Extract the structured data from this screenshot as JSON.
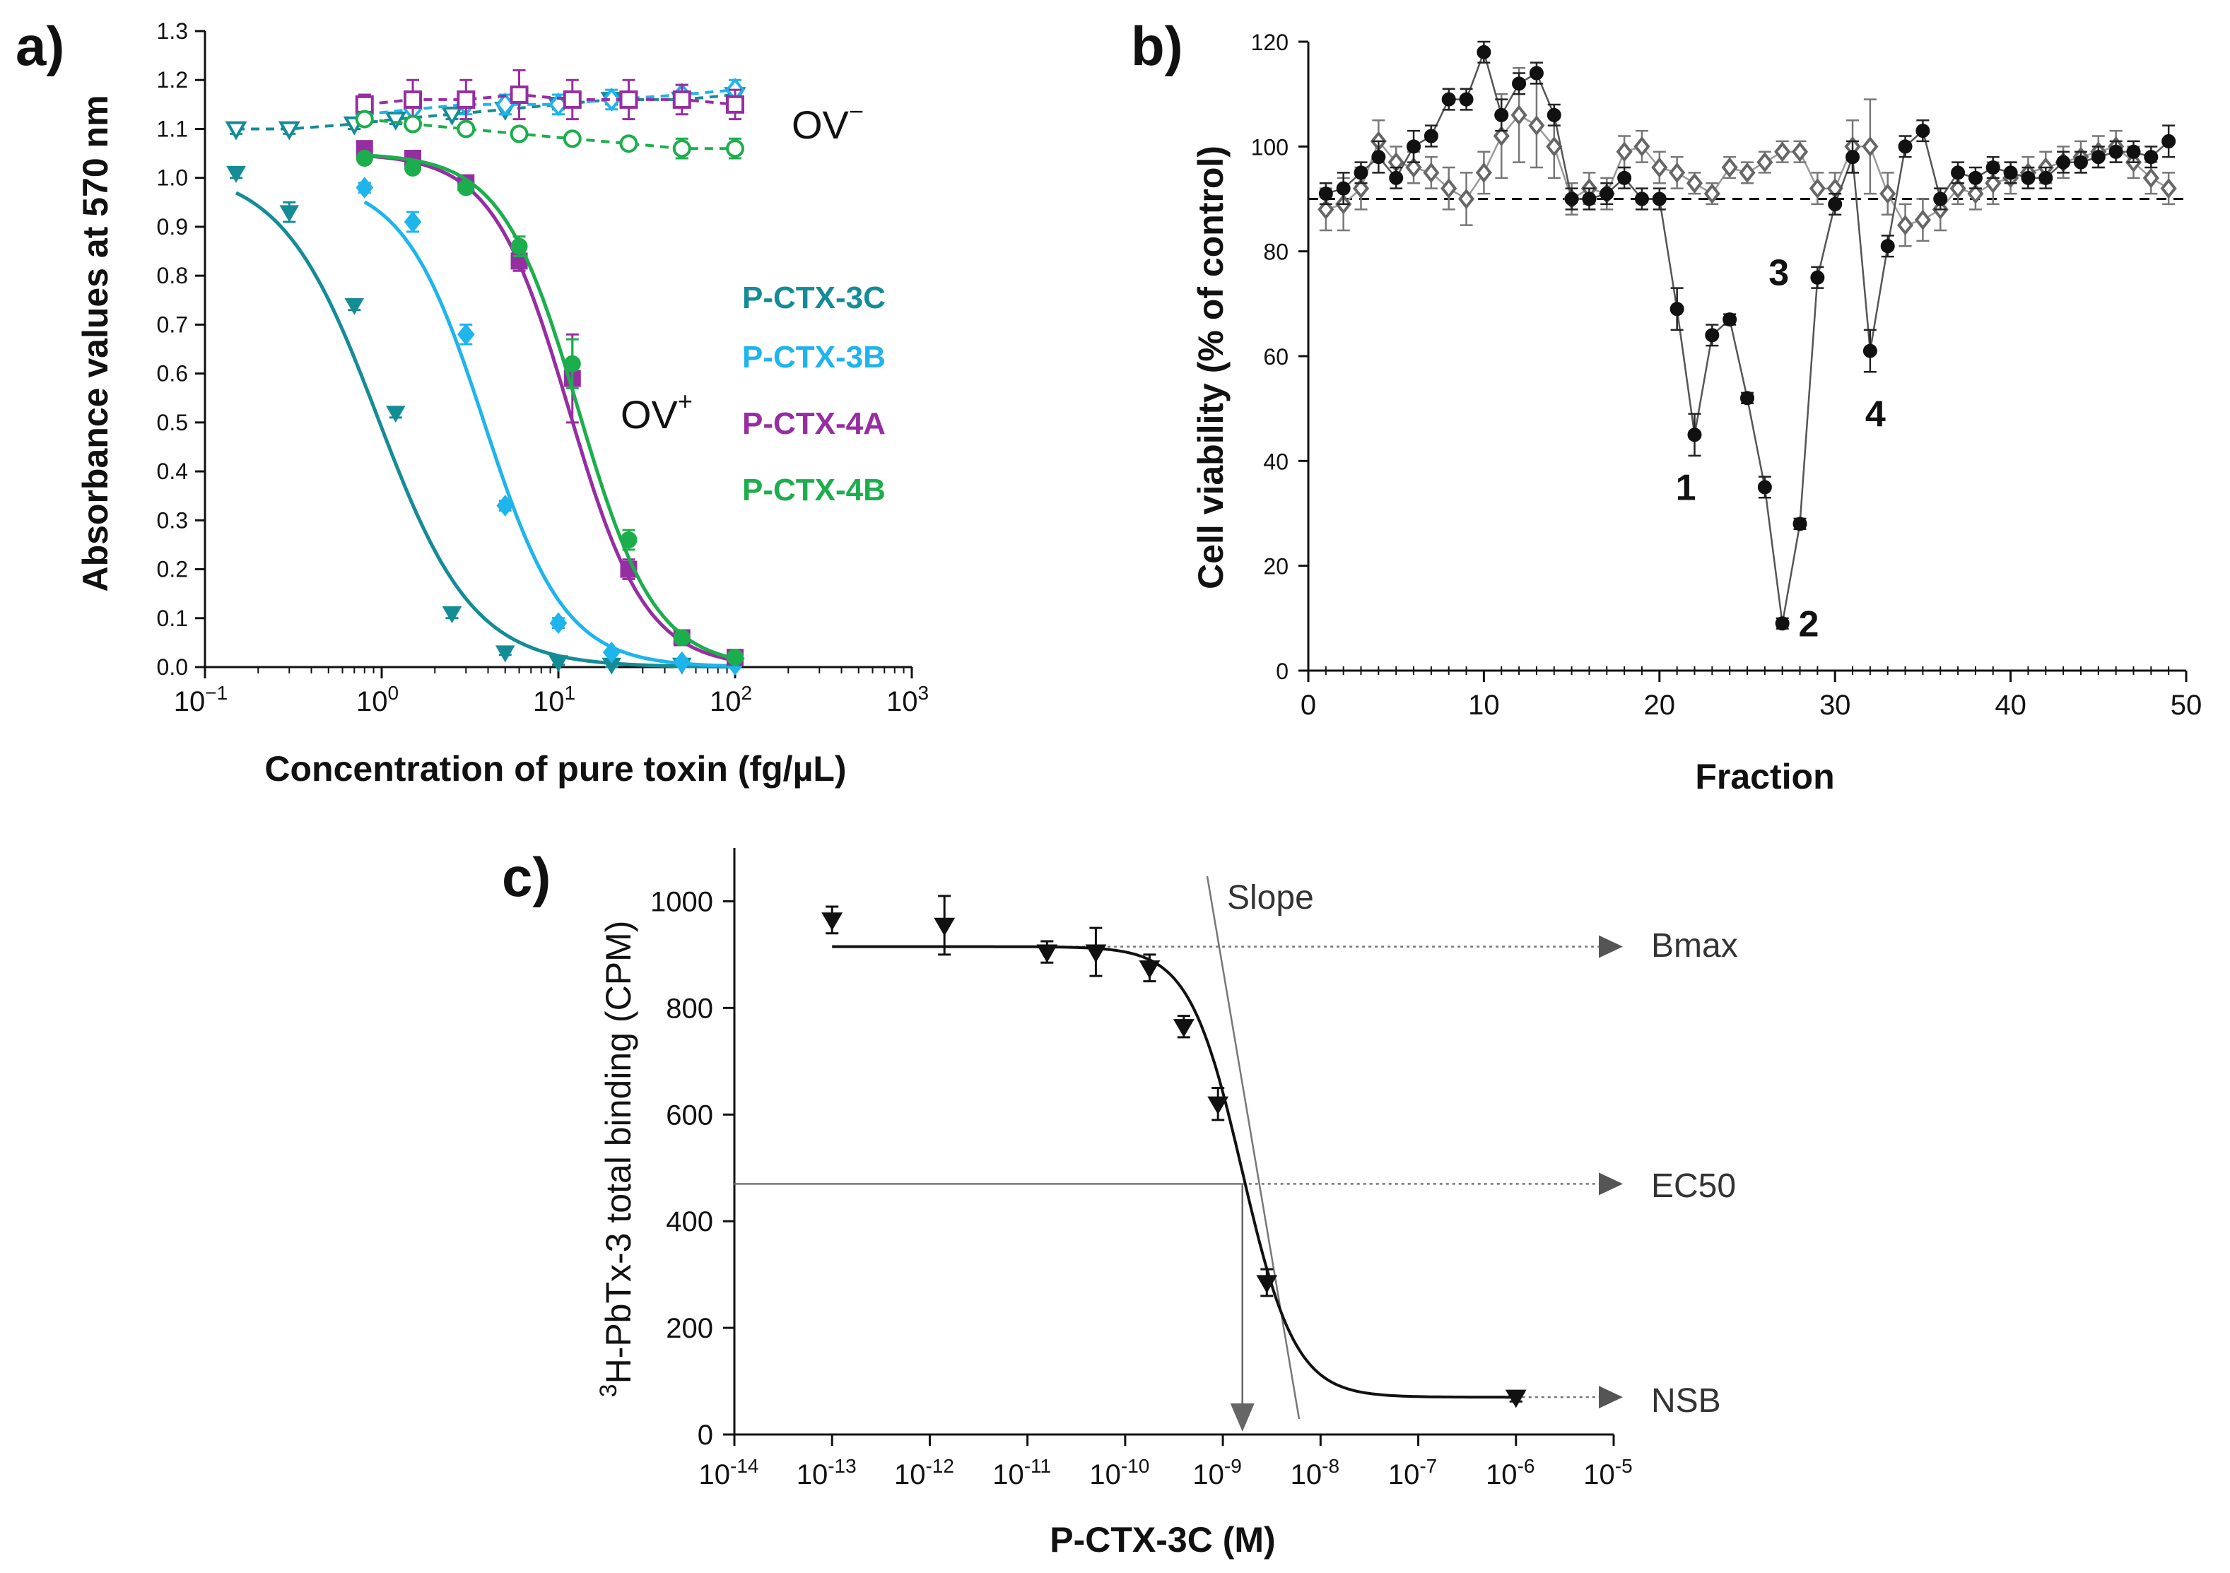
{
  "chart_data": [
    {
      "panel_label": "a)",
      "type": "line",
      "xscale": "log",
      "xlabel": "Concentration of pure toxin (fg/µL)",
      "ylabel": "Absorbance  values at 570 nm",
      "xlim": [
        0.1,
        1000
      ],
      "ylim": [
        0.0,
        1.3
      ],
      "xticks": [
        {
          "v": 0.1,
          "base": "10",
          "exp": "−1"
        },
        {
          "v": 1,
          "base": "10",
          "exp": "0"
        },
        {
          "v": 10,
          "base": "10",
          "exp": "1"
        },
        {
          "v": 100,
          "base": "10",
          "exp": "2"
        },
        {
          "v": 1000,
          "base": "10",
          "exp": "3"
        }
      ],
      "yticks": [
        "0.0",
        "0.1",
        "0.2",
        "0.3",
        "0.4",
        "0.5",
        "0.6",
        "0.7",
        "0.8",
        "0.9",
        "1.0",
        "1.1",
        "1.2",
        "1.3"
      ],
      "annotations": {
        "ov_plus": "OV",
        "ov_plus_sup": "+",
        "ov_minus": "OV",
        "ov_minus_sup": "−"
      },
      "legend": [
        "P-CTX-3C",
        "P-CTX-3B",
        "P-CTX-4A",
        "P-CTX-4B"
      ],
      "series": [
        {
          "name": "P-CTX-3C",
          "color": "#148c96",
          "condition": "OV+",
          "marker": "triangle-down",
          "x": [
            0.15,
            0.3,
            0.7,
            1.2,
            2.5,
            5,
            10,
            20,
            50,
            100
          ],
          "y": [
            1.01,
            0.93,
            0.74,
            0.52,
            0.11,
            0.03,
            0.01,
            0.005,
            0.005,
            0.005
          ],
          "err": [
            0.01,
            0.02,
            0.01,
            0.01,
            0.01,
            0.005,
            0.005,
            0.005,
            0.005,
            0.005
          ],
          "fit": {
            "top": 1.02,
            "bottom": 0.0,
            "ec50": 0.95,
            "hill": 1.6
          }
        },
        {
          "name": "P-CTX-3B",
          "color": "#1eb4ec",
          "condition": "OV+",
          "marker": "diamond",
          "x": [
            0.8,
            1.5,
            3,
            5,
            10,
            20,
            50,
            100
          ],
          "y": [
            0.98,
            0.91,
            0.68,
            0.33,
            0.09,
            0.03,
            0.01,
            0.005
          ],
          "err": [
            0.01,
            0.02,
            0.02,
            0.01,
            0.01,
            0.005,
            0.005,
            0.005
          ],
          "fit": {
            "top": 1.0,
            "bottom": 0.0,
            "ec50": 3.8,
            "hill": 1.9
          }
        },
        {
          "name": "P-CTX-4A",
          "color": "#962ea2",
          "condition": "OV+",
          "marker": "square",
          "x": [
            0.8,
            1.5,
            3,
            6,
            12,
            25,
            50,
            100
          ],
          "y": [
            1.06,
            1.04,
            0.99,
            0.83,
            0.59,
            0.2,
            0.06,
            0.02
          ],
          "err": [
            0.01,
            0.01,
            0.01,
            0.02,
            0.09,
            0.02,
            0.01,
            0.01
          ],
          "fit": {
            "top": 1.05,
            "bottom": 0.0,
            "ec50": 11.5,
            "hill": 2.0
          }
        },
        {
          "name": "P-CTX-4B",
          "color": "#1cae4c",
          "condition": "OV+",
          "marker": "circle",
          "x": [
            0.8,
            1.5,
            3,
            6,
            12,
            25,
            50,
            100
          ],
          "y": [
            1.04,
            1.02,
            0.98,
            0.86,
            0.62,
            0.26,
            0.06,
            0.02
          ],
          "err": [
            0.01,
            0.01,
            0.01,
            0.02,
            0.05,
            0.02,
            0.01,
            0.01
          ],
          "fit": {
            "top": 1.05,
            "bottom": 0.0,
            "ec50": 13.0,
            "hill": 2.0
          }
        },
        {
          "name": "P-CTX-3C",
          "color": "#148c96",
          "condition": "OV-",
          "marker": "triangle-down-open",
          "x": [
            0.15,
            0.3,
            0.7,
            1.2,
            2.5,
            5,
            10,
            20,
            50,
            100
          ],
          "y": [
            1.1,
            1.1,
            1.11,
            1.12,
            1.13,
            1.14,
            1.15,
            1.16,
            1.16,
            1.17
          ],
          "err": [
            0.01,
            0.01,
            0.01,
            0.01,
            0.01,
            0.01,
            0.01,
            0.01,
            0.01,
            0.01
          ]
        },
        {
          "name": "P-CTX-3B",
          "color": "#1eb4ec",
          "condition": "OV-",
          "marker": "diamond-open",
          "x": [
            0.8,
            1.5,
            3,
            5,
            10,
            20,
            50,
            100
          ],
          "y": [
            1.13,
            1.14,
            1.15,
            1.15,
            1.15,
            1.16,
            1.17,
            1.18
          ],
          "err": [
            0.02,
            0.02,
            0.02,
            0.02,
            0.02,
            0.02,
            0.02,
            0.02
          ]
        },
        {
          "name": "P-CTX-4A",
          "color": "#962ea2",
          "condition": "OV-",
          "marker": "square-open",
          "x": [
            0.8,
            1.5,
            3,
            6,
            12,
            25,
            50,
            100
          ],
          "y": [
            1.15,
            1.16,
            1.16,
            1.17,
            1.16,
            1.16,
            1.16,
            1.15
          ],
          "err": [
            0.02,
            0.04,
            0.04,
            0.05,
            0.04,
            0.04,
            0.03,
            0.03
          ]
        },
        {
          "name": "P-CTX-4B",
          "color": "#1cae4c",
          "condition": "OV-",
          "marker": "circle-open",
          "x": [
            0.8,
            1.5,
            3,
            6,
            12,
            25,
            50,
            100
          ],
          "y": [
            1.12,
            1.11,
            1.1,
            1.09,
            1.08,
            1.07,
            1.06,
            1.06
          ],
          "err": [
            0.01,
            0.01,
            0.01,
            0.01,
            0.01,
            0.01,
            0.02,
            0.02
          ]
        }
      ]
    },
    {
      "panel_label": "b)",
      "type": "line",
      "xlabel": "Fraction",
      "ylabel": "Cell viability (% of control)",
      "xlim": [
        0,
        50
      ],
      "ylim": [
        0,
        120
      ],
      "xticks": [
        "0",
        "10",
        "20",
        "30",
        "40",
        "50"
      ],
      "yticks": [
        "0",
        "20",
        "40",
        "60",
        "80",
        "100",
        "120"
      ],
      "reference_line": 90,
      "peak_labels": [
        {
          "text": "1",
          "x": 21.5,
          "y": 35
        },
        {
          "text": "2",
          "x": 28.5,
          "y": 9
        },
        {
          "text": "3",
          "x": 26.8,
          "y": 76
        },
        {
          "text": "4",
          "x": 32.3,
          "y": 49
        }
      ],
      "series": [
        {
          "name": "filled",
          "marker": "circle",
          "color": "#111111",
          "x": [
            1,
            2,
            3,
            4,
            5,
            6,
            7,
            8,
            9,
            10,
            11,
            12,
            13,
            14,
            15,
            16,
            17,
            18,
            19,
            20,
            21,
            22,
            23,
            24,
            25,
            26,
            27,
            28,
            29,
            30,
            31,
            32,
            33,
            34,
            35,
            36,
            37,
            38,
            39,
            40,
            41,
            42,
            43,
            44,
            45,
            46,
            47,
            48,
            49
          ],
          "y": [
            91,
            92,
            95,
            98,
            94,
            100,
            102,
            109,
            109,
            118,
            106,
            112,
            114,
            106,
            90,
            90,
            91,
            94,
            90,
            90,
            69,
            45,
            64,
            67,
            52,
            35,
            9,
            28,
            75,
            89,
            98,
            61,
            81,
            100,
            103,
            90,
            95,
            94,
            96,
            95,
            94,
            94,
            97,
            97,
            98,
            99,
            99,
            98,
            101
          ],
          "err": [
            2,
            3,
            2,
            3,
            2,
            3,
            2,
            2,
            2,
            2,
            3,
            2,
            2,
            2,
            2,
            2,
            2,
            2,
            2,
            2,
            4,
            4,
            2,
            1,
            1,
            2,
            1,
            1,
            2,
            2,
            3,
            4,
            2,
            2,
            2,
            2,
            2,
            2,
            2,
            2,
            2,
            2,
            2,
            2,
            2,
            2,
            2,
            2,
            3
          ]
        },
        {
          "name": "open",
          "marker": "diamond-open",
          "color": "#333333",
          "x": [
            1,
            2,
            3,
            4,
            5,
            6,
            7,
            8,
            9,
            10,
            11,
            12,
            13,
            14,
            15,
            16,
            17,
            18,
            19,
            20,
            21,
            22,
            23,
            24,
            25,
            26,
            27,
            28,
            29,
            30,
            31,
            32,
            33,
            34,
            35,
            36,
            37,
            38,
            39,
            40,
            41,
            42,
            43,
            44,
            45,
            46,
            47,
            48,
            49
          ],
          "y": [
            88,
            89,
            92,
            101,
            97,
            96,
            95,
            92,
            90,
            95,
            102,
            106,
            104,
            100,
            90,
            92,
            91,
            99,
            100,
            96,
            95,
            93,
            91,
            96,
            95,
            97,
            99,
            99,
            92,
            92,
            100,
            100,
            91,
            85,
            86,
            88,
            92,
            91,
            93,
            94,
            95,
            96,
            97,
            98,
            99,
            100,
            97,
            94,
            92
          ],
          "err": [
            4,
            5,
            4,
            4,
            3,
            3,
            3,
            4,
            5,
            4,
            8,
            9,
            8,
            6,
            3,
            3,
            3,
            3,
            3,
            3,
            3,
            2,
            2,
            2,
            2,
            2,
            2,
            2,
            3,
            3,
            5,
            9,
            4,
            4,
            4,
            4,
            3,
            3,
            4,
            3,
            3,
            3,
            3,
            3,
            3,
            3,
            3,
            3,
            3
          ]
        }
      ]
    },
    {
      "panel_label": "c)",
      "type": "line",
      "xscale": "log",
      "xlabel": "P-CTX-3C (M)",
      "ylabel_sup": "3",
      "ylabel": "H-PbTx-3 total binding (CPM)",
      "xlim": [
        -14,
        -5
      ],
      "ylim": [
        0,
        1100
      ],
      "xticks": [
        {
          "v": -14,
          "base": "10",
          "exp": "-14"
        },
        {
          "v": -13,
          "base": "10",
          "exp": "-13"
        },
        {
          "v": -12,
          "base": "10",
          "exp": "-12"
        },
        {
          "v": -11,
          "base": "10",
          "exp": "-11"
        },
        {
          "v": -10,
          "base": "10",
          "exp": "-10"
        },
        {
          "v": -9,
          "base": "10",
          "exp": "-9"
        },
        {
          "v": -8,
          "base": "10",
          "exp": "-8"
        },
        {
          "v": -7,
          "base": "10",
          "exp": "-7"
        },
        {
          "v": -6,
          "base": "10",
          "exp": "-6"
        },
        {
          "v": -5,
          "base": "10",
          "exp": "-5"
        }
      ],
      "yticks": [
        "0",
        "200",
        "400",
        "600",
        "800",
        "1000"
      ],
      "annotations": {
        "slope": "Slope",
        "bmax": "Bmax",
        "ec50": "EC50",
        "nsb": "NSB"
      },
      "fit": {
        "top": 915,
        "bottom": 70,
        "log_ec50": -8.8,
        "hill": 1.6
      },
      "ec50_y": 470,
      "series": [
        {
          "name": "P-CTX-3C",
          "marker": "triangle-down",
          "color": "#111111",
          "log_x": [
            -13,
            -11.85,
            -10.8,
            -10.3,
            -9.75,
            -9.4,
            -9.05,
            -8.55,
            -6
          ],
          "y": [
            965,
            955,
            905,
            905,
            875,
            765,
            620,
            285,
            70
          ],
          "err": [
            25,
            55,
            20,
            45,
            25,
            20,
            30,
            25,
            8
          ]
        }
      ]
    }
  ]
}
